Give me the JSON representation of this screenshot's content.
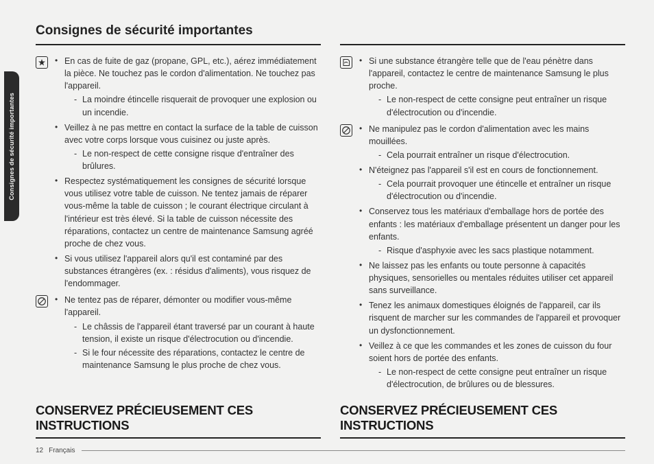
{
  "sideTab": "Consignes de sécurité importantes",
  "heading": "Consignes de sécurité importantes",
  "footerTitle": "CONSERVEZ PRÉCIEUSEMENT CES INSTRUCTIONS",
  "pageNumber": "12",
  "pageLang": "Français",
  "left": {
    "sections": [
      {
        "icon": "star",
        "items": [
          {
            "text": "En cas de fuite de gaz (propane, GPL, etc.), aérez immédiatement la pièce. Ne touchez pas le cordon d'alimentation. Ne touchez pas l'appareil.",
            "sub": [
              "La moindre étincelle risquerait de provoquer une explosion ou un incendie."
            ]
          },
          {
            "text": "Veillez à ne pas mettre en contact la surface de la table de cuisson avec votre corps lorsque vous cuisinez ou juste après.",
            "sub": [
              "Le non-respect de cette consigne risque d'entraîner des brûlures."
            ]
          },
          {
            "text": "Respectez systématiquement les consignes de sécurité lorsque vous utilisez votre table de cuisson. Ne tentez jamais de réparer vous-même la table de cuisson ; le courant électrique circulant à l'intérieur est très élevé. Si la table de cuisson nécessite des réparations, contactez un centre de maintenance Samsung agréé proche de chez vous."
          },
          {
            "text": "Si vous utilisez l'appareil alors qu'il est contaminé par des substances étrangères (ex. : résidus d'aliments), vous risquez de l'endommager."
          }
        ]
      },
      {
        "icon": "prohibit",
        "items": [
          {
            "text": "Ne tentez pas de réparer, démonter ou modifier vous-même l'appareil.",
            "sub": [
              "Le châssis de l'appareil étant traversé par un courant à haute tension, il existe un risque d'électrocution ou d'incendie.",
              "Si le four nécessite des réparations, contactez le centre de maintenance Samsung le plus proche de chez vous."
            ]
          }
        ]
      }
    ]
  },
  "right": {
    "sections": [
      {
        "icon": "note",
        "items": [
          {
            "text": "Si une substance étrangère telle que de l'eau pénètre dans l'appareil, contactez le centre de maintenance Samsung le plus proche.",
            "sub": [
              "Le non-respect de cette consigne peut entraîner un risque d'électrocution ou d'incendie."
            ]
          }
        ]
      },
      {
        "icon": "prohibit",
        "items": [
          {
            "text": "Ne manipulez pas le cordon d'alimentation avec les mains mouillées.",
            "sub": [
              "Cela pourrait entraîner un risque d'électrocution."
            ]
          },
          {
            "text": "N'éteignez pas l'appareil s'il est en cours de fonctionnement.",
            "sub": [
              "Cela pourrait provoquer une étincelle et entraîner un risque d'électrocution ou d'incendie."
            ]
          },
          {
            "text": "Conservez tous les matériaux d'emballage hors de portée des enfants : les matériaux d'emballage présentent un danger pour les enfants.",
            "sub": [
              "Risque d'asphyxie avec les sacs plastique notamment."
            ]
          },
          {
            "text": "Ne laissez pas les enfants ou toute personne à capacités physiques, sensorielles ou mentales réduites utiliser cet appareil sans surveillance."
          },
          {
            "text": "Tenez les animaux domestiques éloignés de l'appareil, car ils risquent de marcher sur les commandes de l'appareil et provoquer un dysfonctionnement."
          },
          {
            "text": "Veillez à ce que les commandes et les zones de cuisson du four soient hors de portée des enfants.",
            "sub": [
              "Le non-respect de cette consigne peut entraîner un risque d'électrocution, de brûlures ou de blessures."
            ]
          }
        ]
      }
    ]
  }
}
